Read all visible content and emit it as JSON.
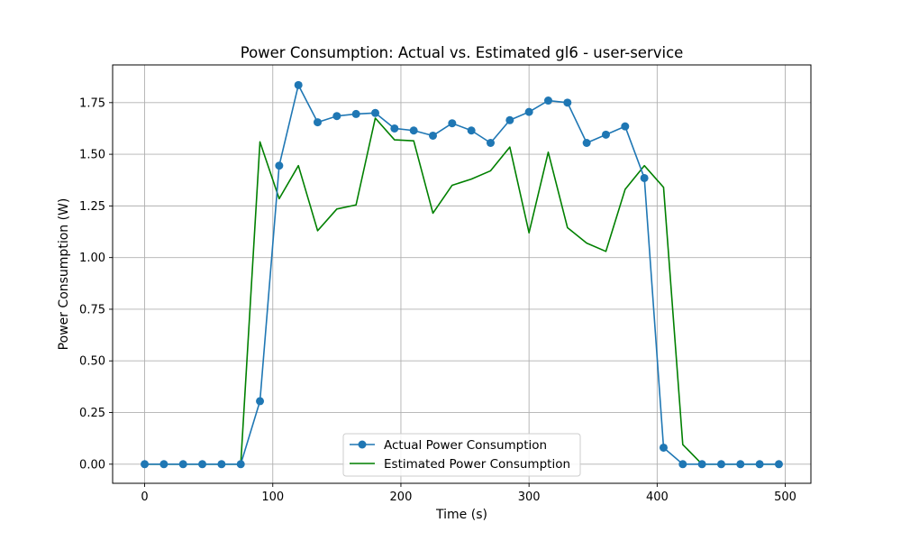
{
  "chart_data": {
    "type": "line",
    "title": "Power Consumption: Actual vs. Estimated gl6 - user-service",
    "xlabel": "Time (s)",
    "ylabel": "Power Consumption (W)",
    "xlim": [
      -25,
      520
    ],
    "ylim": [
      -0.0925,
      1.9325
    ],
    "xticks": [
      0,
      100,
      200,
      300,
      400,
      500
    ],
    "xtick_labels": [
      "0",
      "100",
      "200",
      "300",
      "400",
      "500"
    ],
    "yticks": [
      0,
      0.25,
      0.5,
      0.75,
      1.0,
      1.25,
      1.5,
      1.75
    ],
    "ytick_labels": [
      "0.00",
      "0.25",
      "0.50",
      "0.75",
      "1.00",
      "1.25",
      "1.50",
      "1.75"
    ],
    "grid": true,
    "legend_position": "lower-center",
    "x": [
      0,
      15,
      30,
      45,
      60,
      75,
      90,
      105,
      120,
      135,
      150,
      165,
      180,
      195,
      210,
      225,
      240,
      255,
      270,
      285,
      300,
      315,
      330,
      345,
      360,
      375,
      390,
      405,
      420,
      435,
      450,
      465,
      480,
      495
    ],
    "series": [
      {
        "name": "Actual Power Consumption",
        "color": "#1f77b4",
        "marker": "circle",
        "values": [
          0,
          0,
          0,
          0,
          0,
          0,
          0.305,
          1.445,
          1.835,
          1.655,
          1.685,
          1.695,
          1.7,
          1.625,
          1.615,
          1.59,
          1.65,
          1.615,
          1.555,
          1.665,
          1.705,
          1.76,
          1.75,
          1.555,
          1.595,
          1.635,
          1.385,
          0.08,
          0,
          0,
          0,
          0,
          0,
          0
        ]
      },
      {
        "name": "Estimated Power Consumption",
        "color": "#008000",
        "marker": "none",
        "values": [
          0,
          0,
          0,
          0,
          0,
          0,
          1.56,
          1.285,
          1.445,
          1.13,
          1.235,
          1.255,
          1.675,
          1.57,
          1.565,
          1.215,
          1.35,
          1.38,
          1.42,
          1.535,
          1.12,
          1.51,
          1.145,
          1.07,
          1.03,
          1.33,
          1.445,
          1.34,
          0.095,
          0,
          0,
          0,
          0,
          0
        ]
      }
    ]
  }
}
